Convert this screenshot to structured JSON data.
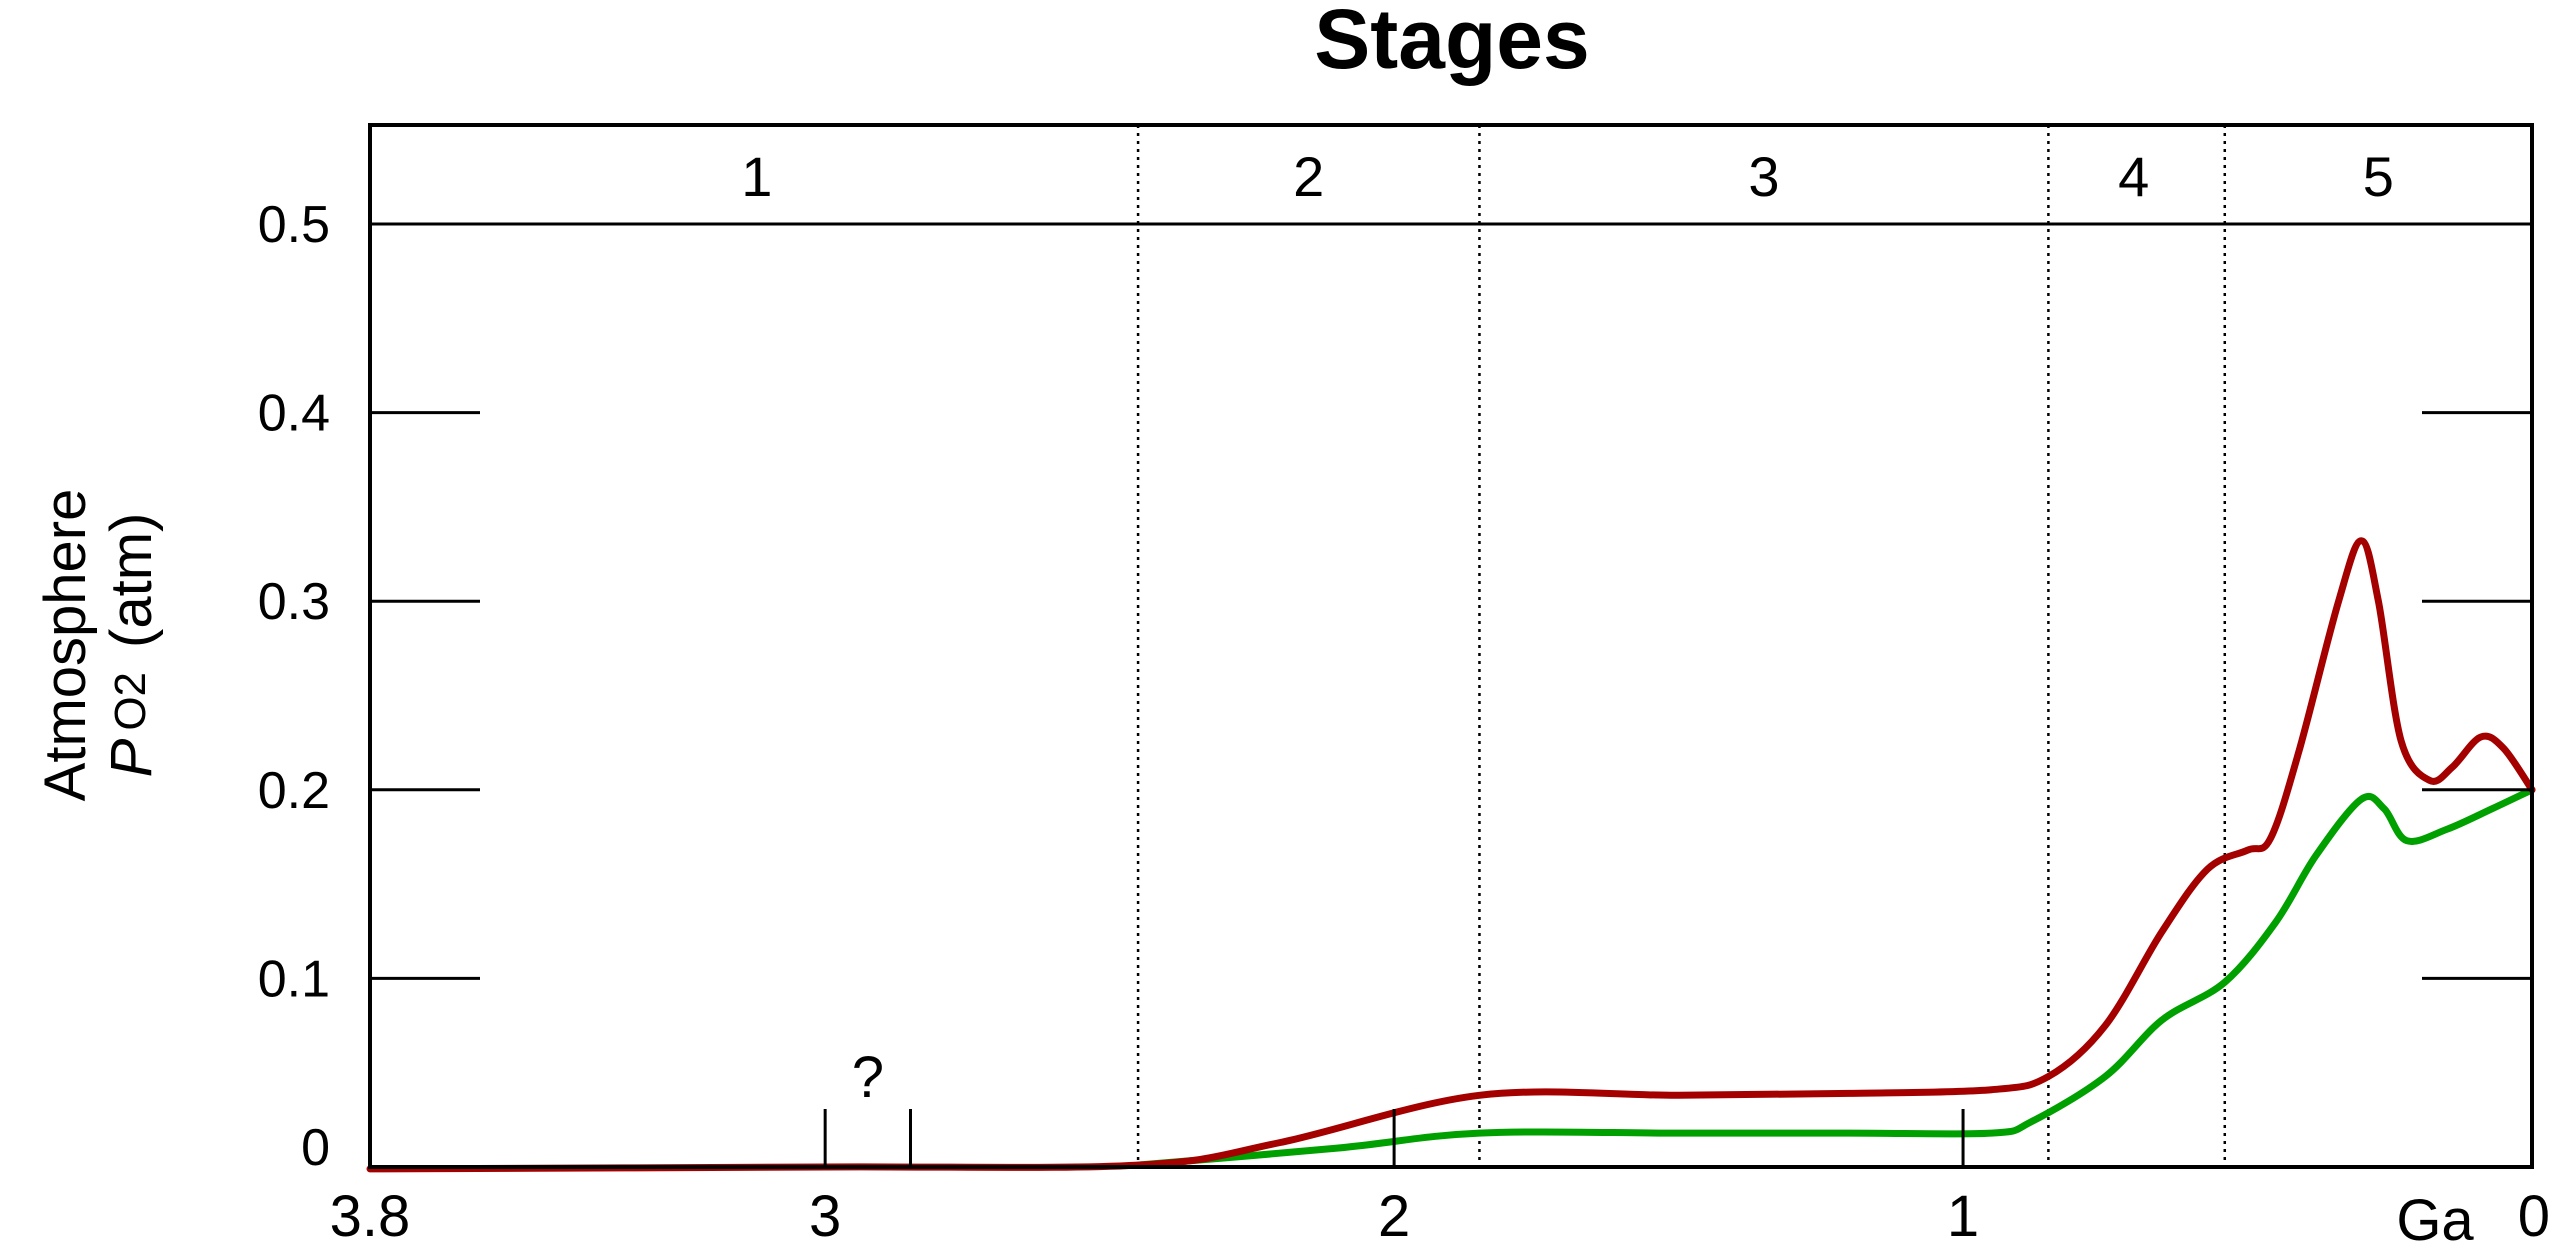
{
  "chart_data": {
    "type": "line",
    "title": "Stages",
    "ylabel": {
      "line1": "Atmosphere",
      "symbol": "P",
      "subscript": "O",
      "subscript_number": "2",
      "unit": "(atm)"
    },
    "x_unit": "Ga",
    "xlim": [
      3.8,
      0
    ],
    "ylim": [
      -0.001,
      0.51
    ],
    "x_ticks": [
      {
        "value": 3.8,
        "label": "3.8"
      },
      {
        "value": 3,
        "label": "3"
      },
      {
        "value": 2,
        "label": "2"
      },
      {
        "value": 1,
        "label": "1"
      },
      {
        "value": 0,
        "label": "0"
      }
    ],
    "y_ticks": [
      {
        "value": 0,
        "label": "0"
      },
      {
        "value": 0.1,
        "label": "0.1"
      },
      {
        "value": 0.2,
        "label": "0.2"
      },
      {
        "value": 0.3,
        "label": "0.3"
      },
      {
        "value": 0.4,
        "label": "0.4"
      },
      {
        "value": 0.5,
        "label": "0.5"
      }
    ],
    "stage_boundaries": [
      2.45,
      1.85,
      0.85,
      0.54
    ],
    "stages": [
      {
        "label": "1",
        "x": 3.12
      },
      {
        "label": "2",
        "x": 2.15
      },
      {
        "label": "3",
        "x": 1.35
      },
      {
        "label": "4",
        "x": 0.7
      },
      {
        "label": "5",
        "x": 0.27
      }
    ],
    "uncertainty": {
      "label": "?",
      "x_range": [
        3.0,
        2.85
      ]
    },
    "series": [
      {
        "color": "#a50000",
        "points": [
          [
            3.8,
            -0.001
          ],
          [
            3.0,
            0.0
          ],
          [
            2.45,
            0.001
          ],
          [
            2.2,
            0.013
          ],
          [
            1.85,
            0.038
          ],
          [
            1.5,
            0.038
          ],
          [
            1.2,
            0.039
          ],
          [
            0.95,
            0.041
          ],
          [
            0.85,
            0.048
          ],
          [
            0.75,
            0.075
          ],
          [
            0.65,
            0.125
          ],
          [
            0.57,
            0.158
          ],
          [
            0.5,
            0.168
          ],
          [
            0.46,
            0.174
          ],
          [
            0.41,
            0.22
          ],
          [
            0.34,
            0.3
          ],
          [
            0.3,
            0.332
          ],
          [
            0.27,
            0.3
          ],
          [
            0.23,
            0.226
          ],
          [
            0.18,
            0.205
          ],
          [
            0.14,
            0.212
          ],
          [
            0.09,
            0.228
          ],
          [
            0.05,
            0.222
          ],
          [
            0.0,
            0.2
          ]
        ]
      },
      {
        "color": "#00a000",
        "points": [
          [
            2.45,
            0.001
          ],
          [
            2.1,
            0.01
          ],
          [
            1.85,
            0.018
          ],
          [
            1.5,
            0.018
          ],
          [
            1.2,
            0.018
          ],
          [
            0.95,
            0.018
          ],
          [
            0.88,
            0.024
          ],
          [
            0.75,
            0.048
          ],
          [
            0.65,
            0.078
          ],
          [
            0.54,
            0.098
          ],
          [
            0.45,
            0.13
          ],
          [
            0.38,
            0.165
          ],
          [
            0.3,
            0.195
          ],
          [
            0.26,
            0.19
          ],
          [
            0.22,
            0.173
          ],
          [
            0.15,
            0.179
          ],
          [
            0.07,
            0.19
          ],
          [
            0.0,
            0.2
          ]
        ]
      }
    ]
  }
}
